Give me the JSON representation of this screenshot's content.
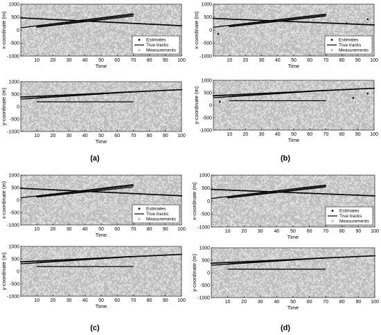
{
  "figure": {
    "panel_labels": [
      "(a)",
      "(b)",
      "(c)",
      "(d)"
    ]
  },
  "legend": {
    "estimates": "Estimates",
    "true_tracks": "True tracks",
    "measurements": "Measurements"
  },
  "colors": {
    "plot_background": "#bdbdbd",
    "measurement": "#e6e6e6",
    "track": "#000000",
    "estimate": "#000000"
  },
  "chart_data": [
    {
      "id": "a-x",
      "panel": "(a)",
      "type": "scatter",
      "xlabel": "Time",
      "ylabel": "x-coordinate (m)",
      "xlim": [
        0,
        100
      ],
      "ylim": [
        -1000,
        1000
      ],
      "xticks": [
        10,
        20,
        30,
        40,
        50,
        60,
        70,
        80,
        90,
        100
      ],
      "yticks": [
        -1000,
        -500,
        0,
        500,
        1000
      ],
      "true_tracks": [
        {
          "x": [
            0,
            100
          ],
          "y": [
            470,
            170
          ]
        },
        {
          "x": [
            0,
            70
          ],
          "y": [
            90,
            630
          ]
        },
        {
          "x": [
            10,
            70
          ],
          "y": [
            110,
            540
          ]
        }
      ],
      "estimates": [
        {
          "x_range": [
            0,
            100
          ],
          "y_range": [
            470,
            170
          ]
        },
        {
          "x_range": [
            10,
            70
          ],
          "y_range": [
            130,
            590
          ]
        }
      ],
      "clutter_estimates": []
    },
    {
      "id": "a-y",
      "panel": "(a)",
      "type": "scatter",
      "xlabel": "Time",
      "ylabel": "y-coordinate (m)",
      "xlim": [
        0,
        100
      ],
      "ylim": [
        -1000,
        1000
      ],
      "xticks": [
        10,
        20,
        30,
        40,
        50,
        60,
        70,
        80,
        90,
        100
      ],
      "yticks": [
        -1000,
        -500,
        0,
        500,
        1000
      ],
      "true_tracks": [
        {
          "x": [
            0,
            100
          ],
          "y": [
            380,
            680
          ]
        },
        {
          "x": [
            0,
            70
          ],
          "y": [
            300,
            590
          ]
        },
        {
          "x": [
            10,
            70
          ],
          "y": [
            190,
            190
          ]
        }
      ],
      "estimates": [
        {
          "x_range": [
            0,
            100
          ],
          "y_range": [
            380,
            680
          ]
        },
        {
          "x_range": [
            10,
            70
          ],
          "y_range": [
            350,
            600
          ]
        }
      ],
      "clutter_estimates": []
    },
    {
      "id": "b-x",
      "panel": "(b)",
      "type": "scatter",
      "xlabel": "Time",
      "ylabel": "x-coordinate (m)",
      "xlim": [
        0,
        100
      ],
      "ylim": [
        -1000,
        1000
      ],
      "xticks": [
        10,
        20,
        30,
        40,
        50,
        60,
        70,
        80,
        90,
        100
      ],
      "yticks": [
        -1000,
        -500,
        0,
        500,
        1000
      ],
      "true_tracks": [
        {
          "x": [
            0,
            100
          ],
          "y": [
            450,
            200
          ]
        },
        {
          "x": [
            0,
            70
          ],
          "y": [
            110,
            620
          ]
        },
        {
          "x": [
            10,
            70
          ],
          "y": [
            130,
            540
          ]
        }
      ],
      "estimates": [
        {
          "x_range": [
            0,
            100
          ],
          "y_range": [
            450,
            200
          ]
        },
        {
          "x_range": [
            10,
            70
          ],
          "y_range": [
            150,
            580
          ]
        }
      ],
      "clutter_estimates": [
        {
          "x": 3,
          "y": -150
        },
        {
          "x": 83,
          "y": 260
        },
        {
          "x": 96,
          "y": 420
        }
      ]
    },
    {
      "id": "b-y",
      "panel": "(b)",
      "type": "scatter",
      "xlabel": "Time",
      "ylabel": "y-coordinate (m)",
      "xlim": [
        0,
        100
      ],
      "ylim": [
        -1000,
        1000
      ],
      "xticks": [
        10,
        20,
        30,
        40,
        50,
        60,
        70,
        80,
        90,
        100
      ],
      "yticks": [
        -1000,
        -500,
        0,
        500,
        1000
      ],
      "true_tracks": [
        {
          "x": [
            0,
            100
          ],
          "y": [
            380,
            680
          ]
        },
        {
          "x": [
            0,
            70
          ],
          "y": [
            300,
            590
          ]
        },
        {
          "x": [
            10,
            70
          ],
          "y": [
            180,
            180
          ]
        }
      ],
      "estimates": [
        {
          "x_range": [
            0,
            100
          ],
          "y_range": [
            380,
            680
          ]
        },
        {
          "x_range": [
            10,
            70
          ],
          "y_range": [
            350,
            600
          ]
        }
      ],
      "clutter_estimates": [
        {
          "x": 4,
          "y": 140
        },
        {
          "x": 87,
          "y": 290
        },
        {
          "x": 96,
          "y": 470
        }
      ]
    },
    {
      "id": "c-x",
      "panel": "(c)",
      "type": "scatter",
      "xlabel": "Time",
      "ylabel": "x-coordinate (m)",
      "xlim": [
        0,
        100
      ],
      "ylim": [
        -1000,
        1000
      ],
      "xticks": [
        10,
        20,
        30,
        40,
        50,
        60,
        70,
        80,
        90,
        100
      ],
      "yticks": [
        -1000,
        -500,
        0,
        500,
        1000
      ],
      "true_tracks": [
        {
          "x": [
            0,
            100
          ],
          "y": [
            470,
            170
          ]
        },
        {
          "x": [
            0,
            70
          ],
          "y": [
            90,
            620
          ]
        },
        {
          "x": [
            10,
            70
          ],
          "y": [
            120,
            520
          ]
        }
      ],
      "estimates": [
        {
          "x_range": [
            0,
            100
          ],
          "y_range": [
            470,
            170
          ]
        },
        {
          "x_range": [
            10,
            70
          ],
          "y_range": [
            140,
            580
          ]
        }
      ],
      "clutter_estimates": []
    },
    {
      "id": "c-y",
      "panel": "(c)",
      "type": "scatter",
      "xlabel": "Time",
      "ylabel": "y-coordinate (m)",
      "xlim": [
        0,
        100
      ],
      "ylim": [
        -1000,
        1000
      ],
      "xticks": [
        10,
        20,
        30,
        40,
        50,
        60,
        70,
        80,
        90,
        100
      ],
      "yticks": [
        -1000,
        -500,
        0,
        500,
        1000
      ],
      "true_tracks": [
        {
          "x": [
            0,
            100
          ],
          "y": [
            380,
            680
          ]
        },
        {
          "x": [
            0,
            70
          ],
          "y": [
            300,
            590
          ]
        },
        {
          "x": [
            10,
            70
          ],
          "y": [
            190,
            190
          ]
        }
      ],
      "estimates": [
        {
          "x_range": [
            0,
            100
          ],
          "y_range": [
            380,
            680
          ]
        },
        {
          "x_range": [
            10,
            70
          ],
          "y_range": [
            350,
            600
          ]
        }
      ],
      "clutter_estimates": []
    },
    {
      "id": "d-x",
      "panel": "(d)",
      "type": "scatter",
      "xlabel": "Time",
      "ylabel": "x-coordinate (m)",
      "xlim": [
        0,
        100
      ],
      "ylim": [
        -1000,
        1000
      ],
      "xticks": [
        10,
        20,
        30,
        40,
        50,
        60,
        70,
        80,
        90,
        100
      ],
      "yticks": [
        -1000,
        -500,
        0,
        500,
        1000
      ],
      "true_tracks": [
        {
          "x": [
            0,
            100
          ],
          "y": [
            450,
            200
          ]
        },
        {
          "x": [
            0,
            70
          ],
          "y": [
            100,
            620
          ]
        },
        {
          "x": [
            10,
            70
          ],
          "y": [
            120,
            540
          ]
        }
      ],
      "estimates": [
        {
          "x_range": [
            0,
            100
          ],
          "y_range": [
            450,
            200
          ]
        },
        {
          "x_range": [
            10,
            70
          ],
          "y_range": [
            140,
            580
          ]
        }
      ],
      "clutter_estimates": []
    },
    {
      "id": "d-y",
      "panel": "(d)",
      "type": "scatter",
      "xlabel": "Time",
      "ylabel": "y-coordinate (m)",
      "xlim": [
        0,
        100
      ],
      "ylim": [
        -1000,
        1000
      ],
      "xticks": [
        10,
        20,
        30,
        40,
        50,
        60,
        70,
        80,
        90,
        100
      ],
      "yticks": [
        -1000,
        -500,
        0,
        500,
        1000
      ],
      "true_tracks": [
        {
          "x": [
            0,
            100
          ],
          "y": [
            380,
            680
          ]
        },
        {
          "x": [
            0,
            70
          ],
          "y": [
            300,
            590
          ]
        },
        {
          "x": [
            10,
            70
          ],
          "y": [
            140,
            140
          ]
        }
      ],
      "estimates": [
        {
          "x_range": [
            0,
            100
          ],
          "y_range": [
            380,
            680
          ]
        },
        {
          "x_range": [
            10,
            70
          ],
          "y_range": [
            350,
            600
          ]
        }
      ],
      "clutter_estimates": []
    }
  ]
}
